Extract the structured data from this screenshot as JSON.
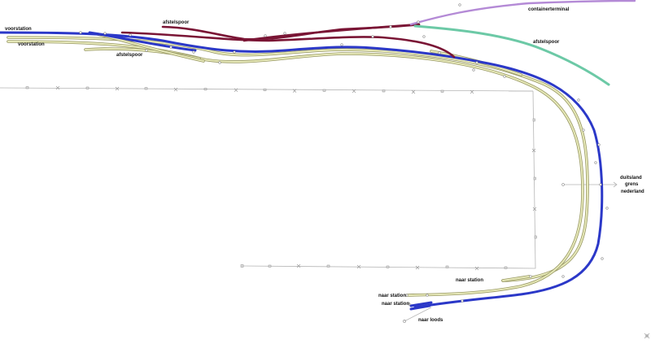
{
  "colors": {
    "main_line": "#2b38c8",
    "siding": "#7a1535",
    "container_line": "#b48ad6",
    "green_line": "#6cc9a6",
    "yellow_track": "#e6e8b8",
    "thin_track": "#b5b5b5"
  },
  "labels": {
    "voorstation_top": "voorstation",
    "voorstation_mid": "voorstation",
    "afstelspoor_top": "afstelspoor",
    "afstelspoor_left": "afstelspoor",
    "afstelspoor_right": "afstelspoor",
    "containerterminal": "containerterminal",
    "duitsland": "duitsland",
    "grens": "grens",
    "nederland": "nederland",
    "naar_station_1": "naar station",
    "naar_station_2": "naar station",
    "naar_station_3": "naar station",
    "naar_loods": "naar loods"
  }
}
